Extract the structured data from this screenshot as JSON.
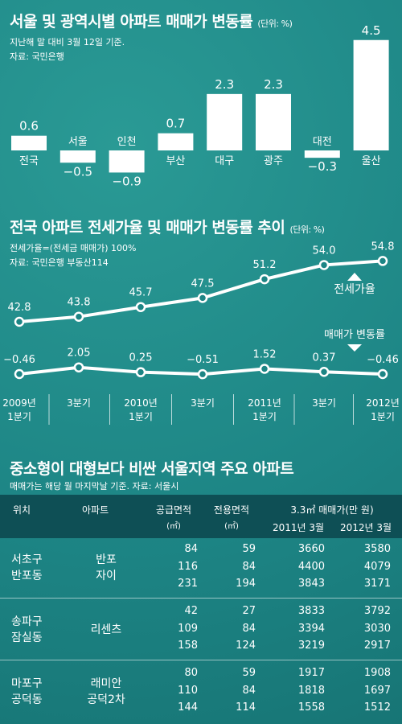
{
  "bar_section": {
    "title": "서울 및 광역시별 아파트  매매가 변동률",
    "unit": "(단위: %)",
    "note1": "지난해 말 대비 3월 12일 기준.",
    "note2": "자료: 국민은행"
  },
  "line_section": {
    "title": "전국 아파트 전세가율 및 매매가 변동률 추이",
    "unit": "(단위: %)",
    "note1": "전세가율=(전세금  매매가)  100%",
    "note2": "자료: 국민은행 부동산114",
    "label_jeonse": "전세가율",
    "label_sale": "매매가 변동률",
    "x_labels": [
      [
        "2009년",
        "1분기"
      ],
      [
        "3분기"
      ],
      [
        "2010년",
        "1분기"
      ],
      [
        "3분기"
      ],
      [
        "2011년",
        "1분기"
      ],
      [
        "3분기"
      ],
      [
        "2012년",
        "1분기"
      ]
    ]
  },
  "table_section": {
    "title": "중소형이 대형보다 비싼 서울지역 주요 아파트",
    "note": "매매가는 해당 월 마지막날 기준.  자료: 서울시",
    "headers": {
      "location": "위치",
      "apartment": "아파트",
      "supply_area": "공급면적",
      "exclusive_area": "전용면적",
      "area_unit": "(㎡)",
      "price": "3.3㎡ 매매가(만 원)",
      "y2011": "2011년 3월",
      "y2012": "2012년 3월"
    },
    "groups": [
      {
        "loc": [
          "서초구",
          "반포동"
        ],
        "apt": [
          "반포",
          "자이"
        ],
        "rows": [
          {
            "supply": "84",
            "excl": "59",
            "p2011": "3660",
            "p2012": "3580"
          },
          {
            "supply": "116",
            "excl": "84",
            "p2011": "4400",
            "p2012": "4079"
          },
          {
            "supply": "231",
            "excl": "194",
            "p2011": "3843",
            "p2012": "3171"
          }
        ]
      },
      {
        "loc": [
          "송파구",
          "잠실동"
        ],
        "apt": [
          "리센츠"
        ],
        "rows": [
          {
            "supply": "42",
            "excl": "27",
            "p2011": "3833",
            "p2012": "3792"
          },
          {
            "supply": "109",
            "excl": "84",
            "p2011": "3394",
            "p2012": "3030"
          },
          {
            "supply": "158",
            "excl": "124",
            "p2011": "3219",
            "p2012": "2917"
          }
        ]
      },
      {
        "loc": [
          "마포구",
          "공덕동"
        ],
        "apt": [
          "래미안",
          "공덕2차"
        ],
        "rows": [
          {
            "supply": "80",
            "excl": "59",
            "p2011": "1917",
            "p2012": "1908"
          },
          {
            "supply": "110",
            "excl": "84",
            "p2011": "1818",
            "p2012": "1697"
          },
          {
            "supply": "144",
            "excl": "114",
            "p2011": "1558",
            "p2012": "1512"
          }
        ]
      }
    ]
  },
  "colors": {
    "bar": "#ffffff",
    "header_bg": "#0e4f55",
    "text": "#ffffff"
  },
  "chart_data": [
    {
      "type": "bar",
      "title": "서울 및 광역시별 아파트  매매가 변동률",
      "categories": [
        "전국",
        "서울",
        "인천",
        "부산",
        "대구",
        "광주",
        "대전",
        "울산"
      ],
      "values": [
        0.6,
        -0.5,
        -0.9,
        0.7,
        2.3,
        2.3,
        -0.3,
        4.5
      ],
      "value_labels": [
        "0.6",
        "−0.5",
        "−0.9",
        "0.7",
        "2.3",
        "2.3",
        "−0.3",
        "4.5"
      ],
      "ylabel": "",
      "xlabel": ""
    },
    {
      "type": "line",
      "title": "전국 아파트 전세가율 및 매매가 변동률 추이",
      "x": [
        "2009년 1분기",
        "3분기",
        "2010년 1분기",
        "3분기",
        "2011년 1분기",
        "3분기",
        "2012년 1분기"
      ],
      "series": [
        {
          "name": "전세가율",
          "values": [
            42.8,
            43.8,
            45.7,
            47.5,
            51.2,
            54.0,
            54.8
          ],
          "labels": [
            "42.8",
            "43.8",
            "45.7",
            "47.5",
            "51.2",
            "54.0",
            "54.8"
          ]
        },
        {
          "name": "매매가 변동률",
          "values": [
            -0.46,
            2.05,
            0.25,
            -0.51,
            1.52,
            0.37,
            -0.46
          ],
          "labels": [
            "−0.46",
            "2.05",
            "0.25",
            "−0.51",
            "1.52",
            "0.37",
            "−0.46"
          ]
        }
      ]
    }
  ]
}
